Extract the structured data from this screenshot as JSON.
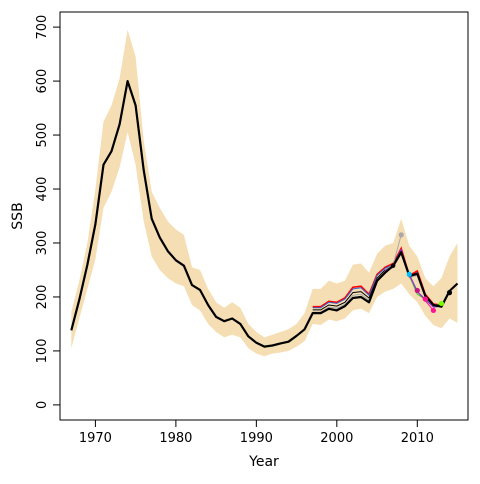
{
  "chart_data": {
    "type": "line",
    "title": "",
    "xlabel": "Year",
    "ylabel": "SSB",
    "xlim": [
      1965.6,
      2016.3
    ],
    "ylim": [
      -28,
      728
    ],
    "x_ticks": [
      1970,
      1980,
      1990,
      2000,
      2010
    ],
    "x_tick_labels": [
      "1970",
      "1980",
      "1990",
      "2000",
      "2010"
    ],
    "y_ticks": [
      0,
      100,
      200,
      300,
      400,
      500,
      600,
      700
    ],
    "y_tick_labels": [
      "0",
      "100",
      "200",
      "300",
      "400",
      "500",
      "600",
      "700"
    ],
    "grid": false,
    "legend": "none",
    "colors": {
      "band": "#f5deb3",
      "main_line": "#000000",
      "retro_palette": [
        "#ff0000",
        "#00cd00",
        "#2e8b57",
        "#3a5fcd",
        "#00bfff",
        "#ff1493",
        "#ffd700",
        "#a9a9a9",
        "#000000",
        "#a020f0",
        "#ff7f00",
        "#ff0000",
        "#32cd32"
      ]
    },
    "uncertainty_band": {
      "x": [
        1967,
        1968,
        1969,
        1970,
        1971,
        1972,
        1973,
        1974,
        1975,
        1976,
        1977,
        1978,
        1979,
        1980,
        1981,
        1982,
        1983,
        1984,
        1985,
        1986,
        1987,
        1988,
        1989,
        1990,
        1991,
        1992,
        1993,
        1994,
        1995,
        1996,
        1997,
        1998,
        1999,
        2000,
        2001,
        2002,
        2003,
        2004,
        2005,
        2006,
        2007,
        2008,
        2009,
        2010,
        2011,
        2012,
        2013,
        2014,
        2015
      ],
      "lower": [
        105,
        160,
        215,
        270,
        365,
        395,
        440,
        505,
        445,
        340,
        275,
        250,
        235,
        225,
        220,
        185,
        175,
        150,
        135,
        125,
        130,
        125,
        105,
        95,
        90,
        95,
        97,
        100,
        108,
        118,
        150,
        148,
        158,
        155,
        160,
        175,
        178,
        170,
        200,
        210,
        215,
        225,
        205,
        190,
        165,
        148,
        142,
        160,
        152
      ],
      "upper": [
        172,
        230,
        300,
        400,
        525,
        555,
        605,
        695,
        645,
        490,
        395,
        365,
        340,
        325,
        315,
        255,
        250,
        215,
        190,
        180,
        190,
        180,
        150,
        135,
        125,
        130,
        135,
        140,
        150,
        170,
        215,
        215,
        230,
        225,
        230,
        260,
        262,
        245,
        280,
        295,
        300,
        345,
        295,
        275,
        235,
        220,
        235,
        275,
        300
      ]
    },
    "series": [
      {
        "x": [
          1967,
          1968,
          1969,
          1970,
          1971,
          1972,
          1973,
          1974,
          1975,
          1976,
          1977,
          1978,
          1979,
          1980,
          1981,
          1982,
          1983,
          1984,
          1985,
          1986,
          1987,
          1988,
          1989,
          1990,
          1991,
          1992,
          1993,
          1994,
          1995,
          1996,
          1997,
          1998,
          1999,
          2000,
          2001,
          2002,
          2003,
          2004,
          2005,
          2006,
          2007,
          2008,
          2009,
          2010,
          2011,
          2012,
          2013,
          2014,
          2015
        ],
        "values": [
          138,
          195,
          260,
          335,
          445,
          470,
          520,
          600,
          555,
          435,
          345,
          310,
          285,
          268,
          258,
          222,
          213,
          185,
          163,
          155,
          160,
          150,
          127,
          115,
          108,
          110,
          114,
          117,
          128,
          140,
          170,
          170,
          178,
          175,
          183,
          198,
          200,
          190,
          230,
          245,
          258,
          283,
          239,
          243,
          202,
          185,
          182,
          211,
          225
        ]
      },
      {
        "x": [
          2006,
          2007,
          2008
        ],
        "values": [
          250,
          260,
          315
        ]
      },
      {
        "x": [
          2006,
          2007,
          2008,
          2009
        ],
        "values": [
          247,
          255,
          283,
          242
        ]
      },
      {
        "x": [
          2006,
          2007,
          2008,
          2009,
          2010
        ],
        "values": [
          248,
          255,
          282,
          238,
          212
        ]
      },
      {
        "x": [
          2006,
          2007,
          2008,
          2009,
          2010,
          2011
        ],
        "values": [
          248,
          256,
          284,
          240,
          205,
          196
        ]
      },
      {
        "x": [
          2006,
          2007,
          2008,
          2009,
          2010,
          2011,
          2012
        ],
        "values": [
          247,
          256,
          285,
          241,
          210,
          193,
          175
        ]
      },
      {
        "x": [
          2006,
          2007,
          2008,
          2009,
          2010,
          2011,
          2012,
          2013
        ],
        "values": [
          249,
          258,
          286,
          242,
          210,
          195,
          182,
          188
        ]
      },
      {
        "x": [
          2006,
          2007,
          2008,
          2009,
          2010,
          2011,
          2012,
          2013,
          2014
        ],
        "values": [
          249,
          257,
          287,
          242,
          210,
          196,
          181,
          183,
          208
        ]
      }
    ],
    "upper_retro_lines": [
      {
        "x": [
          1997,
          1998,
          1999,
          2000,
          2001,
          2002,
          2003,
          2004,
          2005,
          2006,
          2007,
          2008,
          2009,
          2010,
          2011,
          2012,
          2013
        ],
        "values": [
          182,
          182,
          192,
          190,
          198,
          218,
          220,
          205,
          242,
          255,
          262,
          290,
          240,
          248,
          205,
          187,
          185
        ]
      },
      {
        "x": [
          1997,
          1998,
          1999,
          2000,
          2001,
          2002,
          2003,
          2004,
          2005,
          2006,
          2007,
          2008,
          2009,
          2010,
          2011,
          2012,
          2013
        ],
        "values": [
          180,
          180,
          190,
          188,
          196,
          215,
          217,
          203,
          240,
          253,
          260,
          288,
          238,
          245,
          203,
          186,
          184
        ]
      },
      {
        "x": [
          1997,
          1998,
          1999,
          2000,
          2001,
          2002,
          2003,
          2004,
          2005,
          2006,
          2007,
          2008,
          2009,
          2010,
          2011,
          2012,
          2013
        ],
        "values": [
          176,
          176,
          185,
          183,
          190,
          208,
          210,
          198,
          235,
          250,
          258,
          285,
          237,
          242,
          200,
          184,
          183
        ]
      },
      {
        "x": [
          1997,
          1998,
          1999,
          2000,
          2001,
          2002,
          2003,
          2004,
          2005,
          2006,
          2007,
          2008,
          2009,
          2010,
          2011,
          2012,
          2013
        ],
        "values": [
          172,
          172,
          181,
          179,
          186,
          203,
          205,
          194,
          232,
          247,
          255,
          280,
          236,
          240,
          199,
          183,
          182
        ]
      }
    ]
  }
}
